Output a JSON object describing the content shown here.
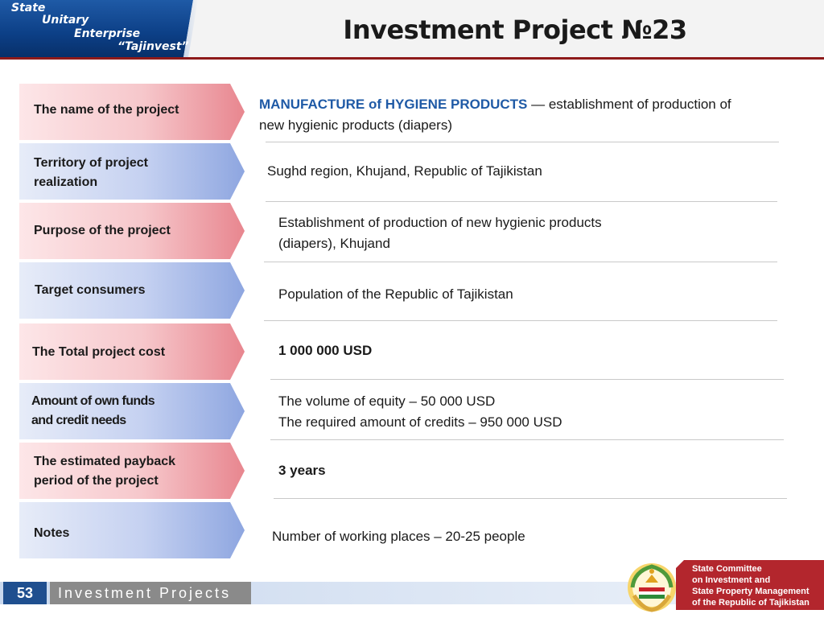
{
  "header": {
    "logo_lines": [
      "State",
      "Unitary",
      "Enterprise",
      "“Tajinvest”"
    ],
    "title": "Investment  Project №23"
  },
  "rows": [
    {
      "label": "The name of the project"
    },
    {
      "label_lines": [
        "Territory of project",
        "realization"
      ]
    },
    {
      "label": "Purpose of the project"
    },
    {
      "label": "Target consumers"
    },
    {
      "label": "The Total project cost"
    },
    {
      "label_lines": [
        "Amount of own funds",
        "and credit needs"
      ]
    },
    {
      "label_lines": [
        "The estimated payback",
        "period of the project"
      ]
    },
    {
      "label": "Notes"
    }
  ],
  "values": {
    "name_highlight": "MANUFACTURE  of  HYGIENE  PRODUCTS",
    "name_rest": " —  establishment  of  production  of",
    "name_line2": "new hygienic products (diapers)",
    "territory": "Sughd region, Khujand, Republic of Tajikistan",
    "purpose_line1": "Establishment of production of new hygienic products",
    "purpose_line2": "(diapers), Khujand",
    "consumers": "Population of the Republic of Tajikistan",
    "total_cost": "1 000 000 USD",
    "funds_line1": "The volume of equity – 50 000 USD",
    "funds_line2": "The required amount of credits – 950 000 USD",
    "payback": "3 years",
    "notes": "Number of working places –  20-25 people"
  },
  "footer": {
    "page_number": "53",
    "section_label": "Investment Projects",
    "gov_lines": [
      "State Committee",
      "on Investment and",
      "State Property Management",
      "of the Republic of Tajikistan"
    ]
  },
  "colors": {
    "accent_blue": "#1f5aa6",
    "header_rule": "#8e1a1a",
    "gov_red": "#b3262d"
  }
}
